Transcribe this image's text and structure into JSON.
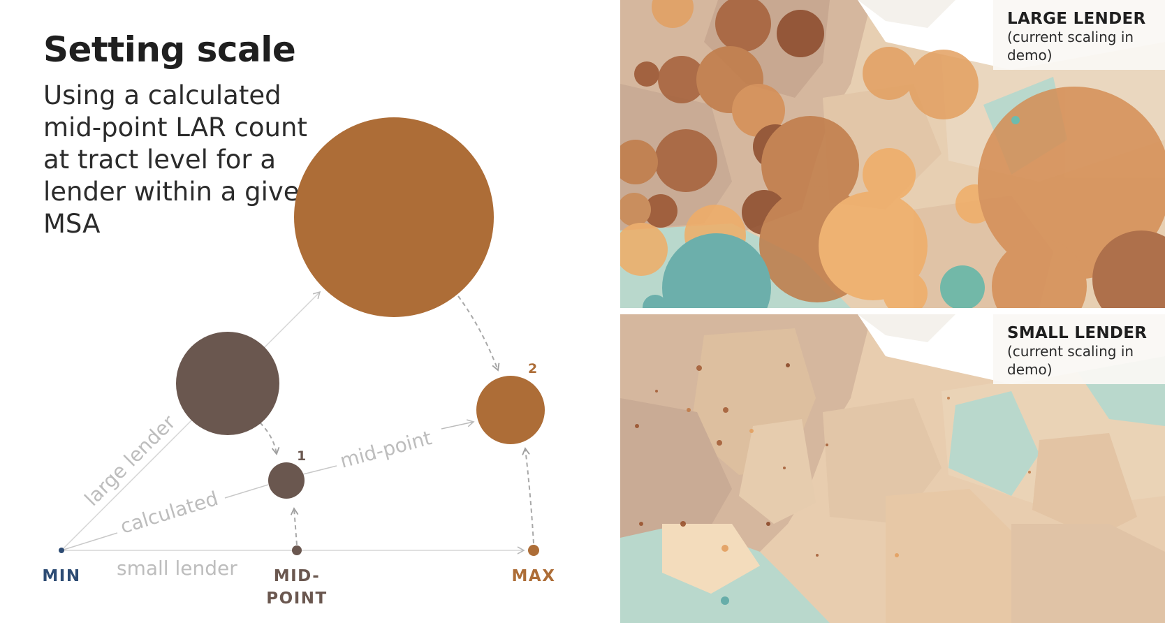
{
  "title": "Setting scale",
  "subtitle": "Using a calculated mid-point LAR count at tract level for a lender within a given MSA",
  "axis": {
    "min_label": "MIN",
    "mid_label_line1": "MID-",
    "mid_label_line2": "POINT",
    "max_label": "MAX"
  },
  "paths": {
    "large_lender": "large lender",
    "calculated": "calculated",
    "mid_point": "mid-point",
    "small_lender": "small lender"
  },
  "markers": {
    "one": "1",
    "two": "2"
  },
  "colors": {
    "brown": "#ad6d37",
    "dark": "#6a574f",
    "navy": "#2d4b73",
    "gray_line": "#d5d5d5",
    "label_gray": "#bdbdbd"
  },
  "maps": {
    "large": {
      "title": "LARGE LENDER",
      "subtitle": "(current scaling in demo)"
    },
    "small": {
      "title": "SMALL LENDER",
      "subtitle": "(current scaling in demo)"
    }
  }
}
